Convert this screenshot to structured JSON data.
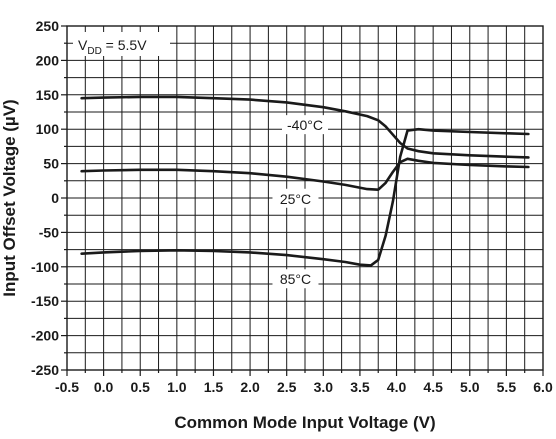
{
  "chart_data": {
    "type": "line",
    "title": "",
    "xlabel": "Common Mode Input Voltage (V)",
    "ylabel": "Input Offset Voltage (µV)",
    "xlim": [
      -0.5,
      6.0
    ],
    "ylim": [
      -250,
      250
    ],
    "x_ticks": [
      "-0.5",
      "0.0",
      "0.5",
      "1.0",
      "1.5",
      "2.0",
      "2.5",
      "3.0",
      "3.5",
      "4.0",
      "4.5",
      "5.0",
      "5.5",
      "6.0"
    ],
    "y_ticks": [
      "250",
      "200",
      "150",
      "100",
      "50",
      "0",
      "-50",
      "-100",
      "-150",
      "-200",
      "-250"
    ],
    "grid": true,
    "annotations": {
      "vdd_main": "V",
      "vdd_sub": "DD",
      "vdd_rest": " = 5.5V"
    },
    "series": [
      {
        "name": "-40°C",
        "x": [
          -0.3,
          0.0,
          0.5,
          1.0,
          1.5,
          2.0,
          2.5,
          3.0,
          3.3,
          3.6,
          3.75,
          3.85,
          3.95,
          4.05,
          4.15,
          4.3,
          4.5,
          5.0,
          5.5,
          5.8
        ],
        "y": [
          145,
          146,
          147,
          147,
          145,
          143,
          139,
          132,
          126,
          119,
          113,
          104,
          92,
          80,
          72,
          68,
          65,
          62,
          60,
          59
        ]
      },
      {
        "name": "25°C",
        "x": [
          -0.3,
          0.0,
          0.5,
          1.0,
          1.5,
          2.0,
          2.5,
          3.0,
          3.3,
          3.6,
          3.75,
          3.85,
          3.95,
          4.05,
          4.15,
          4.3,
          4.5,
          5.0,
          5.5,
          5.8
        ],
        "y": [
          39,
          40,
          41,
          41,
          39,
          36,
          31,
          24,
          19,
          13,
          12,
          22,
          38,
          52,
          57,
          54,
          51,
          48,
          46,
          45
        ]
      },
      {
        "name": "85°C",
        "x": [
          -0.3,
          0.0,
          0.5,
          1.0,
          1.5,
          2.0,
          2.5,
          3.0,
          3.3,
          3.5,
          3.65,
          3.75,
          3.85,
          3.95,
          4.05,
          4.15,
          4.3,
          4.5,
          5.0,
          5.5,
          5.8
        ],
        "y": [
          -81,
          -79,
          -77,
          -76,
          -77,
          -79,
          -83,
          -89,
          -93,
          -97,
          -98,
          -90,
          -55,
          -5,
          60,
          98,
          100,
          98,
          96,
          94,
          93
        ]
      }
    ],
    "series_labels": [
      {
        "text": "-40°C",
        "x": 2.75,
        "y": 103
      },
      {
        "text": "25°C",
        "x": 2.62,
        "y": -4
      },
      {
        "text": "85°C",
        "x": 2.62,
        "y": -121
      }
    ]
  }
}
